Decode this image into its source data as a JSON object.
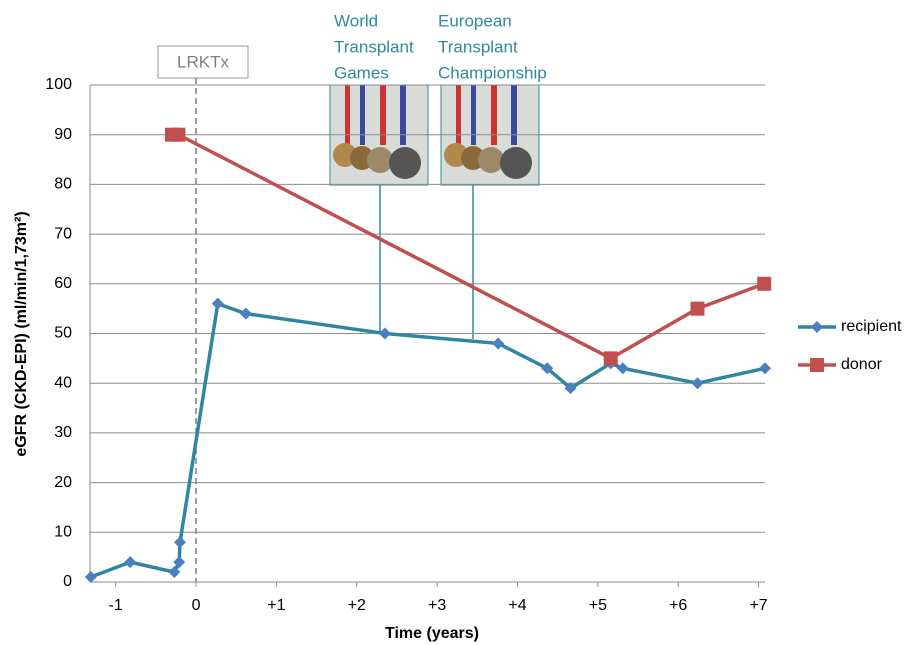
{
  "chart_data": {
    "type": "line",
    "x_label": "Time (years)",
    "y_label": "eGFR (CKD-EPI) (ml/min/1,73m²)",
    "xlim": [
      -1.32,
      7.08
    ],
    "xticks": [
      -1,
      0,
      {
        "value": 1,
        "label": "+1"
      },
      {
        "value": 2,
        "label": "+2"
      },
      {
        "value": 3,
        "label": "+3"
      },
      {
        "value": 4,
        "label": "+4"
      },
      {
        "value": 5,
        "label": "+5"
      },
      {
        "value": 6,
        "label": "+6"
      },
      {
        "value": 7,
        "label": "+7"
      }
    ],
    "ylim": [
      0,
      100
    ],
    "yticks": [
      0,
      10,
      20,
      30,
      40,
      50,
      60,
      70,
      80,
      90,
      100
    ],
    "grid": true,
    "legend": "right",
    "series": [
      {
        "name": "recipient",
        "color": "#2e86a0",
        "marker_color": "#4a7fc0",
        "x": [
          -1.31,
          -0.82,
          -0.27,
          -0.21,
          -0.2,
          0.27,
          0.62,
          2.35,
          3.76,
          4.37,
          4.66,
          5.16,
          5.31,
          6.24,
          7.08
        ],
        "values": [
          1,
          4,
          2,
          4,
          8,
          56,
          54,
          50,
          48,
          43,
          39,
          44,
          43,
          40,
          43
        ]
      },
      {
        "name": "donor",
        "color": "#c0504d",
        "marker_color": "#c0504d",
        "x": [
          -0.3,
          -0.22,
          5.16,
          6.24,
          7.07
        ],
        "values": [
          90,
          90,
          45,
          55,
          60
        ]
      }
    ],
    "annotations": [
      {
        "lines": [
          "LRKTx"
        ]
      },
      {
        "lines": [
          "World",
          "Transplant",
          "Games"
        ]
      },
      {
        "lines": [
          "European",
          "Transplant",
          "Championship"
        ]
      }
    ]
  }
}
